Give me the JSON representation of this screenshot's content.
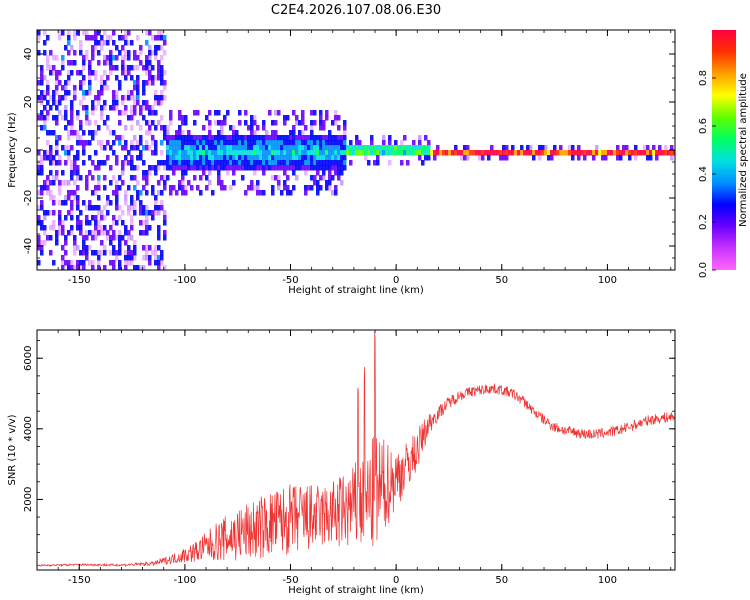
{
  "title": "C2E4.2026.107.08.06.E30",
  "chart_data": [
    {
      "type": "heatmap",
      "title": "C2E4.2026.107.08.06.E30",
      "xlabel": "Height of straight line (km)",
      "ylabel": "Frequency (Hz)",
      "xlim": [
        -170,
        132
      ],
      "ylim": [
        -50,
        50
      ],
      "xticks": [
        -150,
        -100,
        -50,
        0,
        50,
        100
      ],
      "yticks": [
        -40,
        -20,
        0,
        20,
        40
      ],
      "colorbar": {
        "label": "Normalized spectral amplitude",
        "range": [
          0,
          1
        ],
        "ticks": [
          0.0,
          0.2,
          0.4,
          0.6,
          0.8
        ],
        "colormap": [
          "#ff66ff",
          "#c833ff",
          "#6a00ff",
          "#0000ff",
          "#0090ff",
          "#00e0e0",
          "#00ff60",
          "#60ff00",
          "#ffff00",
          "#ffa000",
          "#ff3000",
          "#ff0040"
        ]
      },
      "regions": [
        {
          "x": [
            -170,
            -110
          ],
          "description": "broadband noise",
          "amplitude": 0.25
        },
        {
          "x": [
            -110,
            -25
          ],
          "freq_center": 0,
          "freq_halfwidth": 8,
          "amplitude": 0.45
        },
        {
          "x": [
            -25,
            15
          ],
          "freq_center": 1,
          "freq_halfwidth": 3,
          "amplitude": 0.65
        },
        {
          "x": [
            15,
            132
          ],
          "freq_center": 0,
          "freq_halfwidth": 1,
          "amplitude": 1.0
        }
      ]
    },
    {
      "type": "line",
      "xlabel": "Height of straight line (km)",
      "ylabel": "SNR (10 * v/v)",
      "xlim": [
        -170,
        132
      ],
      "ylim": [
        0,
        6800
      ],
      "xticks": [
        -150,
        -100,
        -50,
        0,
        50,
        100
      ],
      "yticks": [
        2000,
        4000,
        6000
      ],
      "series": [
        {
          "name": "SNR",
          "color": "#ee3333",
          "x": [
            -170,
            -150,
            -130,
            -115,
            -105,
            -95,
            -85,
            -75,
            -65,
            -55,
            -45,
            -35,
            -25,
            -15,
            -10,
            -5,
            0,
            5,
            10,
            15,
            20,
            25,
            30,
            35,
            40,
            45,
            50,
            55,
            60,
            65,
            70,
            75,
            80,
            85,
            90,
            95,
            100,
            105,
            110,
            115,
            120,
            125,
            132
          ],
          "y": [
            130,
            150,
            140,
            180,
            330,
            520,
            800,
            1000,
            1180,
            1380,
            1450,
            1500,
            1650,
            1900,
            2100,
            2400,
            2600,
            2950,
            3400,
            4100,
            4450,
            4750,
            4950,
            5050,
            5100,
            5150,
            5100,
            5000,
            4800,
            4500,
            4250,
            4050,
            3950,
            3900,
            3850,
            3850,
            3900,
            3950,
            4050,
            4150,
            4250,
            4300,
            4350
          ],
          "noise": [
            25,
            30,
            30,
            60,
            150,
            300,
            550,
            800,
            900,
            1000,
            1050,
            900,
            1100,
            1400,
            1800,
            1300,
            900,
            700,
            600,
            350,
            200,
            180,
            160,
            150,
            150,
            150,
            150,
            150,
            150,
            150,
            150,
            150,
            150,
            150,
            150,
            150,
            150,
            150,
            150,
            150,
            150,
            150,
            150
          ],
          "peaks": [
            {
              "x": -10,
              "y": 6800
            },
            {
              "x": -15,
              "y": 5900
            },
            {
              "x": -18,
              "y": 5500
            }
          ]
        }
      ]
    }
  ]
}
